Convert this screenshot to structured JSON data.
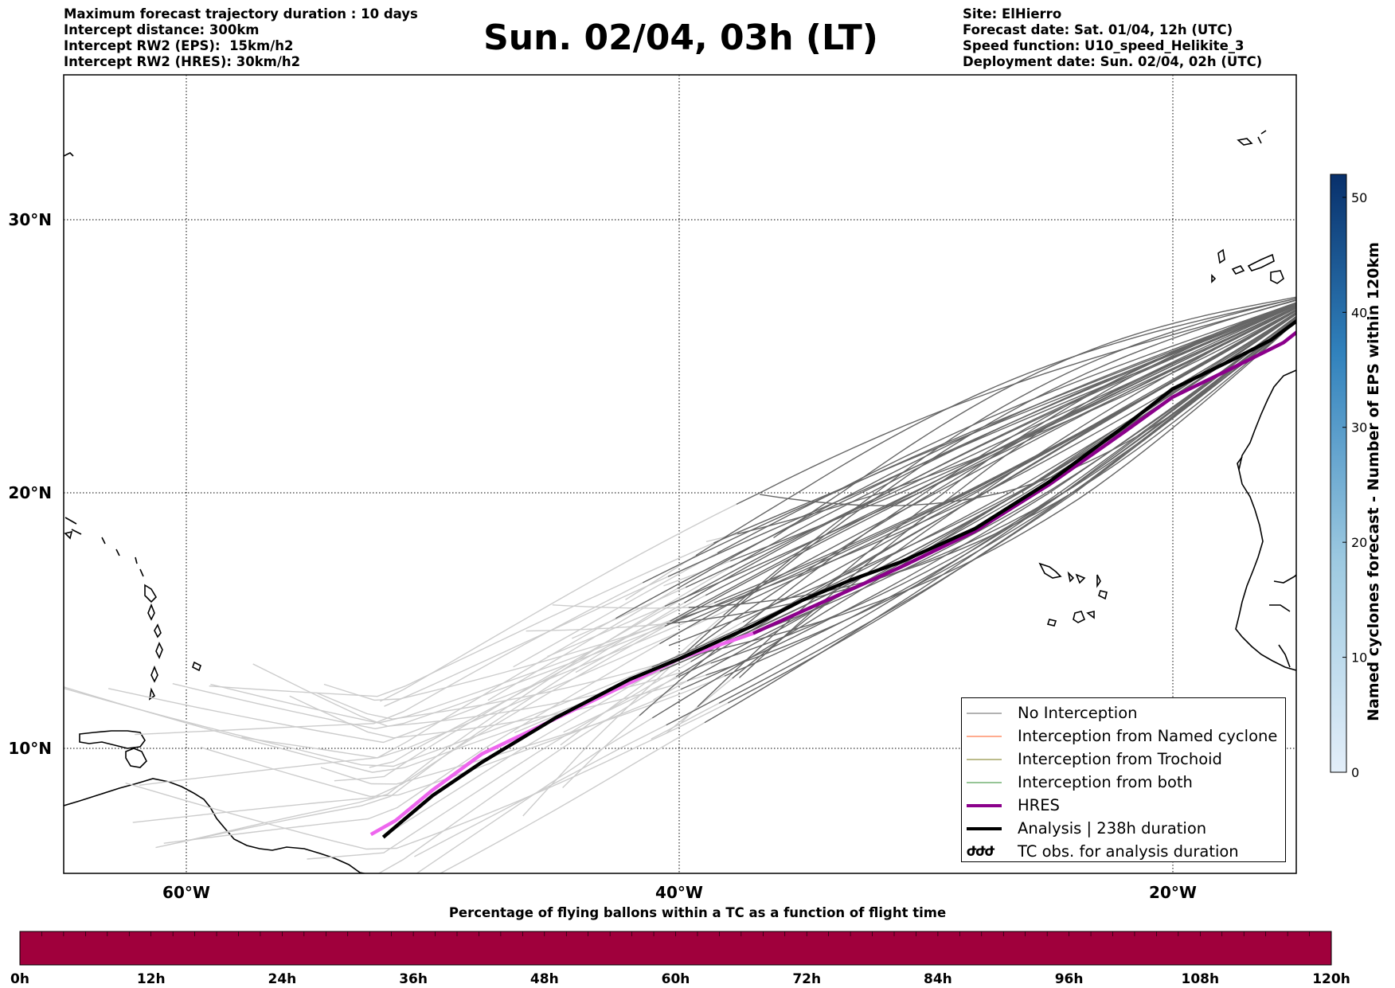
{
  "header_left": [
    "Maximum forecast trajectory duration : 10 days",
    "Intercept distance: 300km",
    "Intercept RW2 (EPS):  15km/h2",
    "Intercept RW2 (HRES): 30km/h2"
  ],
  "title": "Sun. 02/04, 03h (LT)",
  "header_right": [
    "Site: ElHierro",
    "Forecast date: Sat. 01/04, 12h (UTC)",
    "Speed function: U10_speed_Helikite_3",
    "Deployment date: Sun. 02/04, 02h (UTC)"
  ],
  "map": {
    "lon_ticks": [
      "60°W",
      "40°W",
      "20°W"
    ],
    "lat_ticks": [
      "30°N",
      "20°N",
      "10°N"
    ],
    "lon_range": [
      -65,
      -15
    ],
    "lat_range": [
      5.5,
      34.8
    ],
    "colors": {
      "no_interception_dark": "#666666",
      "no_interception_light": "#cccccc",
      "named_cyclone": "#ff5a1f",
      "trochoid": "#7a7a1a",
      "both": "#2e8b2e",
      "hres": "#8b008b",
      "hres_early": "#ee66ee",
      "analysis": "#000000"
    },
    "analysis_track": [
      [
        -13.6,
        27.4
      ],
      [
        -14.5,
        26.6
      ],
      [
        -16,
        25.6
      ],
      [
        -17.5,
        24.9
      ],
      [
        -20,
        23.8
      ],
      [
        -22,
        22.4
      ],
      [
        -25,
        20.4
      ],
      [
        -28,
        18.6
      ],
      [
        -31,
        17.3
      ],
      [
        -33,
        16.6
      ],
      [
        -35,
        15.8
      ],
      [
        -37,
        14.8
      ],
      [
        -40,
        13.5
      ],
      [
        -42,
        12.7
      ],
      [
        -45,
        11.2
      ],
      [
        -48,
        9.5
      ],
      [
        -50,
        8.3
      ],
      [
        -52,
        6.8
      ]
    ],
    "hres_track": [
      [
        -13.6,
        27.4
      ],
      [
        -14.1,
        26.5
      ],
      [
        -15.5,
        25.5
      ],
      [
        -17.5,
        24.6
      ],
      [
        -20,
        23.5
      ],
      [
        -22,
        22.2
      ],
      [
        -25,
        20.3
      ],
      [
        -28,
        18.5
      ],
      [
        -31,
        17.1
      ],
      [
        -34,
        15.8
      ],
      [
        -37,
        14.5
      ],
      [
        -40,
        13.5
      ],
      [
        -43,
        12.1
      ],
      [
        -46,
        10.7
      ],
      [
        -48,
        9.8
      ],
      [
        -50,
        8.5
      ],
      [
        -51.5,
        7.4
      ],
      [
        -52.5,
        6.9
      ]
    ]
  },
  "legend": {
    "items": [
      {
        "label": "No Interception",
        "color": "#666666",
        "width": 1
      },
      {
        "label": "Interception from Named cyclone",
        "color": "#ff5a1f",
        "width": 1
      },
      {
        "label": "Interception from Trochoid",
        "color": "#7a7a1a",
        "width": 1
      },
      {
        "label": "Interception from both",
        "color": "#2e8b2e",
        "width": 1
      },
      {
        "label": "HRES",
        "color": "#8b008b",
        "width": 4
      },
      {
        "label": "Analysis | 238h duration",
        "color": "#000000",
        "width": 4
      }
    ],
    "tc_symbol": "ԺԺԺ",
    "tc_label": "TC obs. for analysis duration"
  },
  "colorbar": {
    "label": "Named cyclones forecast - Number of EPS within 120km",
    "ticks": [
      "0",
      "10",
      "20",
      "30",
      "40",
      "50"
    ],
    "range": [
      0,
      52
    ],
    "color_low": "#e3eef9",
    "color_high": "#08306b"
  },
  "bottom_bar": {
    "title": "Percentage of flying ballons within a TC as a function of flight time",
    "ticks": [
      "0h",
      "12h",
      "24h",
      "36h",
      "48h",
      "60h",
      "72h",
      "84h",
      "96h",
      "108h",
      "120h"
    ],
    "color": "#a0003c"
  }
}
